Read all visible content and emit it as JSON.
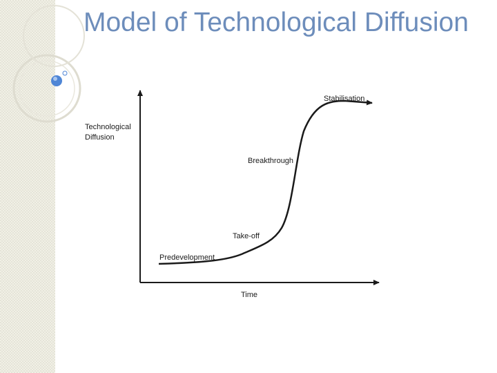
{
  "slide": {
    "title": "Model of Technological Diffusion"
  },
  "diagram": {
    "y_axis_label": [
      "Technological",
      "Diffusion"
    ],
    "x_axis_label": "Time",
    "stages": {
      "predevelopment": "Predevelopment",
      "takeoff": "Take-off",
      "breakthrough": "Breakthrough",
      "stabilisation": "Stabilisation"
    }
  },
  "theme": {
    "title_color": "#6d8dbb",
    "ornament_ring_color": "#dedcd0",
    "ornament_dot_color": "#4f86d6"
  }
}
